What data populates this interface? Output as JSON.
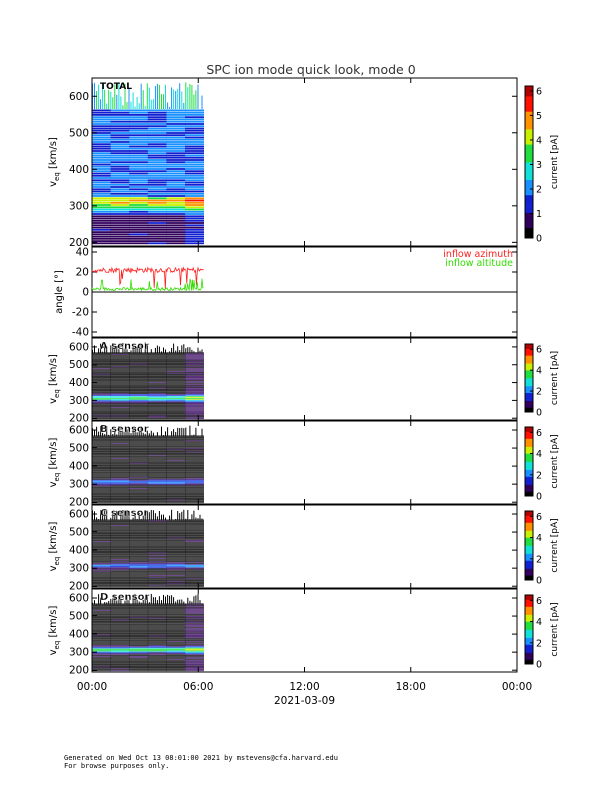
{
  "title": "SPC ion mode quick look, mode 0",
  "colors": {
    "axis": "#000000",
    "azimuth": "#ff2020",
    "altitude": "#33dd00",
    "colormap": [
      "#000000",
      "#30005a",
      "#1020d0",
      "#1890ff",
      "#10e0d8",
      "#20dd40",
      "#c8f000",
      "#ff9000",
      "#ff1000",
      "#b00000"
    ]
  },
  "footer": {
    "line1": "Generated on Wed Oct 13 08:01:00 2021 by mstevens@cfa.harvard.edu",
    "line2": "For browse purposes only."
  },
  "chart_data": [
    {
      "type": "heatmap",
      "label": "TOTAL",
      "ylabel": "v_eq [km/s]",
      "ylabel_main": "v",
      "ylabel_sub": "eq",
      "ylabel_unit": "[km/s]",
      "yticks": [
        200,
        300,
        400,
        500,
        600
      ],
      "ylim": [
        190,
        650
      ],
      "xlim_hours": [
        0,
        24
      ],
      "data_end_hour": 6.3,
      "peak_velocity": 310,
      "colorbar": {
        "label": "current [pA]",
        "ticks": [
          0,
          1,
          2,
          3,
          4,
          5,
          6
        ],
        "range": [
          0,
          6.2
        ]
      },
      "variant": "total"
    },
    {
      "type": "line",
      "ylabel": "angle [°]",
      "yticks": [
        -40,
        -20,
        0,
        20,
        40
      ],
      "ylim": [
        -45,
        45
      ],
      "xlim_hours": [
        0,
        24
      ],
      "legend_position": "top-right",
      "series": [
        {
          "name": "inflow azimuth",
          "approx_level_deg": 22
        },
        {
          "name": "inflow altitude",
          "approx_level_deg": 3
        }
      ]
    },
    {
      "type": "heatmap",
      "label": "A sensor",
      "ylabel": "v_eq [km/s]",
      "ylabel_main": "v",
      "ylabel_sub": "eq",
      "ylabel_unit": "[km/s]",
      "yticks": [
        200,
        300,
        400,
        500,
        600
      ],
      "ylim": [
        190,
        650
      ],
      "xlim_hours": [
        0,
        24
      ],
      "data_end_hour": 6.3,
      "peak_velocity": 310,
      "colorbar": {
        "label": "current [pA]",
        "ticks": [
          0,
          2,
          4,
          6
        ],
        "range": [
          0,
          6.5
        ]
      },
      "variant": "strong"
    },
    {
      "type": "heatmap",
      "label": "B sensor",
      "ylabel": "v_eq [km/s]",
      "ylabel_main": "v",
      "ylabel_sub": "eq",
      "ylabel_unit": "[km/s]",
      "yticks": [
        200,
        300,
        400,
        500,
        600
      ],
      "ylim": [
        190,
        650
      ],
      "xlim_hours": [
        0,
        24
      ],
      "data_end_hour": 6.3,
      "peak_velocity": 310,
      "colorbar": {
        "label": "current [pA]",
        "ticks": [
          0,
          2,
          4,
          6
        ],
        "range": [
          0,
          6.5
        ]
      },
      "variant": "dark"
    },
    {
      "type": "heatmap",
      "label": "C sensor",
      "ylabel": "v_eq [km/s]",
      "ylabel_main": "v",
      "ylabel_sub": "eq",
      "ylabel_unit": "[km/s]",
      "yticks": [
        200,
        300,
        400,
        500,
        600
      ],
      "ylim": [
        190,
        650
      ],
      "xlim_hours": [
        0,
        24
      ],
      "data_end_hour": 6.3,
      "peak_velocity": 310,
      "colorbar": {
        "label": "current [pA]",
        "ticks": [
          0,
          2,
          4,
          6
        ],
        "range": [
          0,
          6.5
        ]
      },
      "variant": "dark"
    },
    {
      "type": "heatmap",
      "label": "D sensor",
      "ylabel": "v_eq [km/s]",
      "ylabel_main": "v",
      "ylabel_sub": "eq",
      "ylabel_unit": "[km/s]",
      "yticks": [
        200,
        300,
        400,
        500,
        600
      ],
      "ylim": [
        190,
        650
      ],
      "xlim_hours": [
        0,
        24
      ],
      "data_end_hour": 6.3,
      "peak_velocity": 310,
      "colorbar": {
        "label": "current [pA]",
        "ticks": [
          0,
          2,
          4,
          6
        ],
        "range": [
          0,
          6.5
        ]
      },
      "variant": "strong"
    }
  ],
  "xaxis": {
    "ticks": [
      "00:00",
      "06:00",
      "12:00",
      "18:00",
      "00:00"
    ],
    "tick_hours": [
      0,
      6,
      12,
      18,
      24
    ],
    "date_label": "2021-03-09"
  }
}
